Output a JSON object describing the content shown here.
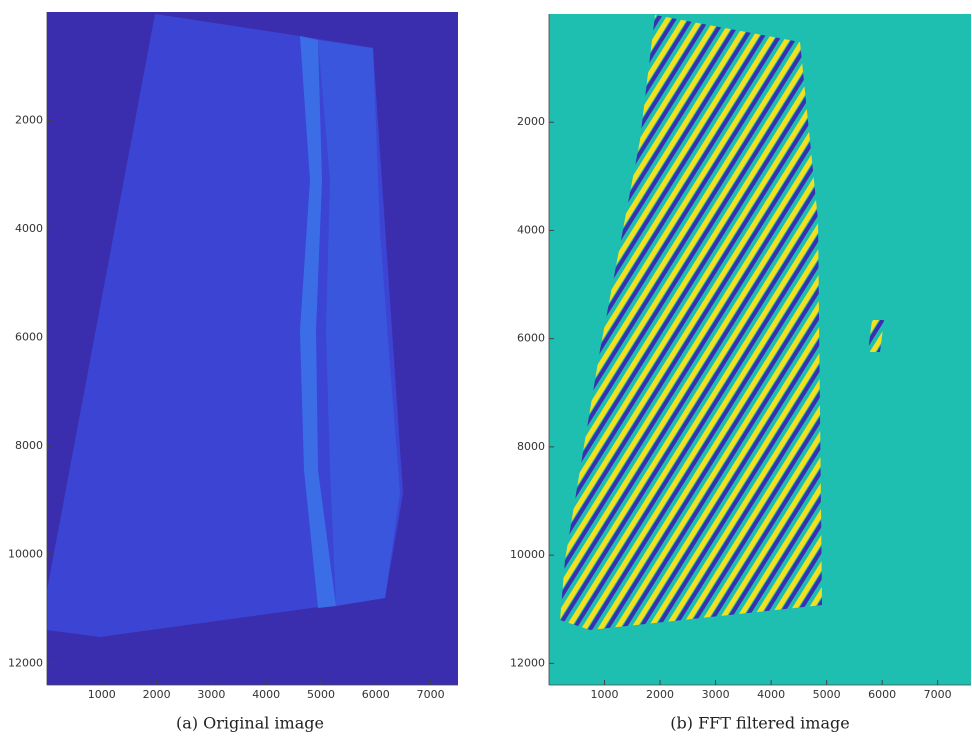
{
  "chart_data": [
    {
      "type": "image",
      "caption": "(a) Original image",
      "xlim": [
        0,
        7500
      ],
      "ylim": [
        0,
        12400
      ],
      "y_reversed": true,
      "xticks": [
        1000,
        2000,
        3000,
        4000,
        5000,
        6000,
        7000
      ],
      "yticks": [
        2000,
        4000,
        6000,
        8000,
        10000,
        12000
      ]
    },
    {
      "type": "image",
      "caption": "(b) FFT filtered image",
      "xlim": [
        0,
        7600
      ],
      "ylim": [
        0,
        12400
      ],
      "y_reversed": true,
      "xticks": [
        1000,
        2000,
        3000,
        4000,
        5000,
        6000,
        7000
      ],
      "yticks": [
        2000,
        4000,
        6000,
        8000,
        10000,
        12000
      ]
    }
  ]
}
